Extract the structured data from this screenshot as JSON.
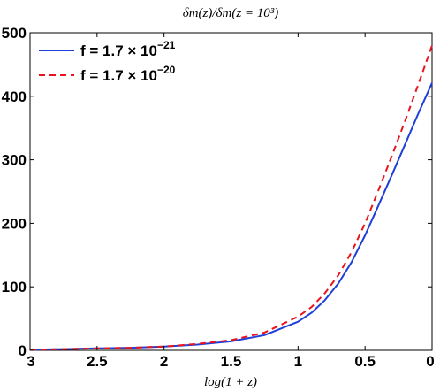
{
  "chart_data": {
    "type": "line",
    "title": "δm(z)/δm(z = 10³)",
    "xlabel": "log(1 + z)",
    "ylabel": "",
    "xlim": [
      3,
      0
    ],
    "ylim": [
      0,
      500
    ],
    "x_reversed": true,
    "xticks": [
      "3",
      "2.5",
      "2",
      "1.5",
      "1",
      "0.5",
      "0"
    ],
    "yticks": [
      "0",
      "100",
      "200",
      "300",
      "400",
      "500"
    ],
    "grid": false,
    "legend_position": "top-left",
    "series": [
      {
        "name": "f = 1.7 × 10⁻²¹",
        "legend_base": "f = 1.7 × 10",
        "legend_exp": "−21",
        "color": "#1f3fd8",
        "style": "solid",
        "x": [
          3.0,
          2.75,
          2.5,
          2.25,
          2.0,
          1.75,
          1.5,
          1.25,
          1.0,
          0.9,
          0.8,
          0.7,
          0.6,
          0.5,
          0.4,
          0.3,
          0.2,
          0.1,
          0.0
        ],
        "y": [
          1,
          2,
          3,
          4,
          6,
          9,
          14,
          24,
          45,
          59,
          79,
          105,
          139,
          181,
          228,
          276,
          325,
          374,
          421
        ]
      },
      {
        "name": "f = 1.7 × 10⁻²⁰",
        "legend_base": "f = 1.7 × 10",
        "legend_exp": "−20",
        "color": "#e8141d",
        "style": "dashed",
        "x": [
          3.0,
          2.75,
          2.5,
          2.25,
          2.0,
          1.75,
          1.5,
          1.25,
          1.0,
          0.9,
          0.8,
          0.7,
          0.6,
          0.5,
          0.4,
          0.3,
          0.2,
          0.1,
          0.0
        ],
        "y": [
          1,
          2,
          3,
          4,
          6,
          10,
          16,
          28,
          53,
          68,
          90,
          118,
          155,
          200,
          252,
          306,
          362,
          420,
          480
        ]
      }
    ]
  }
}
